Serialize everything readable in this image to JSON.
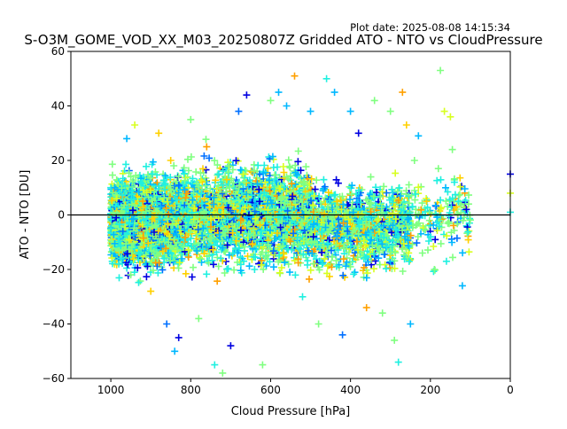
{
  "plot_date": "Plot date: 2025-08-08 14:15:34",
  "chart_data": {
    "type": "scatter",
    "title": "S-O3M_GOME_VOD_XX_M03_20250807Z Gridded ATO - NTO vs CloudPressure",
    "xlabel": "Cloud Pressure [hPa]",
    "ylabel": "ATO - NTO [DU]",
    "xlim": [
      1100,
      0
    ],
    "ylim": [
      -60,
      60
    ],
    "x_reversed": true,
    "x_ticks": [
      1000,
      800,
      600,
      400,
      200,
      0
    ],
    "x_tick_labels": [
      "1000",
      "800",
      "600",
      "400",
      "200",
      "0"
    ],
    "y_ticks": [
      -60,
      -40,
      -20,
      0,
      20,
      40,
      60
    ],
    "y_tick_labels": [
      "−60",
      "−40",
      "−20",
      "0",
      "20",
      "40",
      "60"
    ],
    "marker": "+",
    "grid": false,
    "reference_line_y": 0,
    "colors": [
      "#0000e0",
      "#0070ff",
      "#00b8ff",
      "#20f0e0",
      "#80ff80",
      "#d8ff20",
      "#ffd000",
      "#ffa000"
    ],
    "point_groups": [
      {
        "x_range": [
          1000,
          820
        ],
        "y_center": -2,
        "y_spread": 22,
        "density": "very high"
      },
      {
        "x_range": [
          820,
          500
        ],
        "y_center": 0,
        "y_spread": 25,
        "density": "high"
      },
      {
        "x_range": [
          500,
          250
        ],
        "y_center": -4,
        "y_spread": 22,
        "density": "medium"
      },
      {
        "x_range": [
          250,
          100
        ],
        "y_center": 0,
        "y_spread": 20,
        "density": "low"
      }
    ],
    "points_sample": [
      [
        1000,
        -5
      ],
      [
        990,
        10
      ],
      [
        980,
        -18
      ],
      [
        960,
        28
      ],
      [
        950,
        -22
      ],
      [
        940,
        33
      ],
      [
        920,
        5
      ],
      [
        900,
        -28
      ],
      [
        880,
        30
      ],
      [
        860,
        -40
      ],
      [
        850,
        20
      ],
      [
        840,
        -50
      ],
      [
        830,
        -45
      ],
      [
        800,
        35
      ],
      [
        780,
        -38
      ],
      [
        760,
        25
      ],
      [
        740,
        -55
      ],
      [
        720,
        -58
      ],
      [
        700,
        -48
      ],
      [
        680,
        38
      ],
      [
        660,
        44
      ],
      [
        640,
        -20
      ],
      [
        620,
        -55
      ],
      [
        600,
        42
      ],
      [
        580,
        45
      ],
      [
        560,
        40
      ],
      [
        540,
        51
      ],
      [
        520,
        -30
      ],
      [
        500,
        38
      ],
      [
        480,
        -40
      ],
      [
        460,
        50
      ],
      [
        440,
        45
      ],
      [
        420,
        -44
      ],
      [
        400,
        38
      ],
      [
        380,
        30
      ],
      [
        360,
        -34
      ],
      [
        340,
        42
      ],
      [
        320,
        -36
      ],
      [
        300,
        38
      ],
      [
        290,
        -46
      ],
      [
        280,
        -54
      ],
      [
        270,
        45
      ],
      [
        260,
        33
      ],
      [
        250,
        -40
      ],
      [
        240,
        20
      ],
      [
        230,
        29
      ],
      [
        220,
        -14
      ],
      [
        200,
        -8
      ],
      [
        190,
        -20
      ],
      [
        180,
        17
      ],
      [
        175,
        53
      ],
      [
        165,
        38
      ],
      [
        160,
        -17
      ],
      [
        150,
        36
      ],
      [
        145,
        24
      ],
      [
        140,
        12
      ],
      [
        130,
        5
      ],
      [
        120,
        -26
      ],
      [
        110,
        2
      ],
      [
        0,
        15
      ],
      [
        0,
        8
      ],
      [
        0,
        1
      ]
    ]
  }
}
